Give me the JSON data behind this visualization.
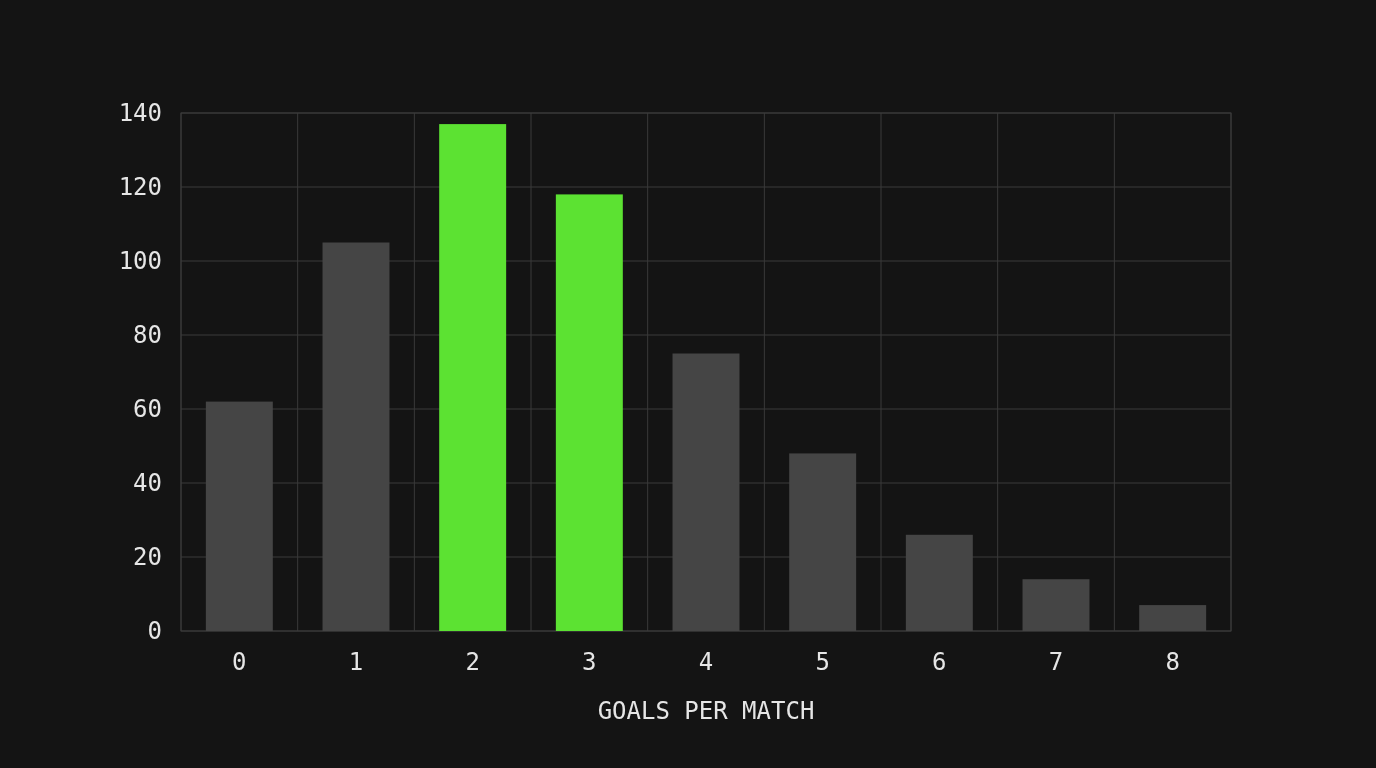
{
  "chart_data": {
    "type": "bar",
    "xlabel": "GOALS PER MATCH",
    "categories": [
      "0",
      "1",
      "2",
      "3",
      "4",
      "5",
      "6",
      "7",
      "8"
    ],
    "values": [
      62,
      105,
      137,
      118,
      75,
      48,
      26,
      14,
      7
    ],
    "colors": [
      "#454545",
      "#454545",
      "#5ce232",
      "#5ce232",
      "#454545",
      "#454545",
      "#454545",
      "#454545",
      "#454545"
    ],
    "ylim": [
      0,
      140
    ],
    "yticks": [
      0,
      20,
      40,
      60,
      80,
      100,
      120,
      140
    ],
    "grid": true
  }
}
